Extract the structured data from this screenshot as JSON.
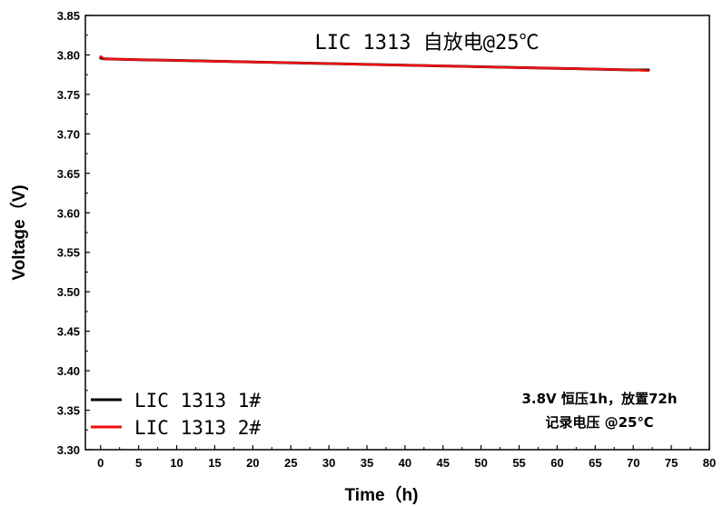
{
  "chart_data": {
    "type": "line",
    "title": "LIC 1313 自放电@25℃",
    "xlabel": "Time（h)",
    "ylabel": "Voltage（V)",
    "xlim": [
      -2,
      80
    ],
    "ylim": [
      3.3,
      3.85
    ],
    "x_ticks": [
      0,
      5,
      10,
      15,
      20,
      25,
      30,
      35,
      40,
      45,
      50,
      55,
      60,
      65,
      70,
      75,
      80
    ],
    "y_ticks": [
      3.3,
      3.35,
      3.4,
      3.45,
      3.5,
      3.55,
      3.6,
      3.65,
      3.7,
      3.75,
      3.8,
      3.85
    ],
    "legend_position": "bottom-left",
    "series": [
      {
        "name": "LIC 1313 1#",
        "color": "#000000",
        "x": [
          0,
          0.5,
          5,
          10,
          15,
          20,
          25,
          30,
          35,
          40,
          45,
          50,
          55,
          60,
          65,
          70,
          72
        ],
        "y": [
          3.796,
          3.795,
          3.794,
          3.793,
          3.792,
          3.791,
          3.79,
          3.789,
          3.788,
          3.787,
          3.786,
          3.785,
          3.784,
          3.783,
          3.782,
          3.781,
          3.781
        ]
      },
      {
        "name": "LIC 1313 2#",
        "color": "#ee1111",
        "x": [
          0,
          0.5,
          5,
          10,
          15,
          20,
          25,
          30,
          35,
          40,
          45,
          50,
          55,
          60,
          65,
          70,
          72
        ],
        "y": [
          3.798,
          3.795,
          3.794,
          3.793,
          3.792,
          3.791,
          3.79,
          3.789,
          3.788,
          3.787,
          3.786,
          3.785,
          3.784,
          3.783,
          3.782,
          3.781,
          3.78
        ]
      }
    ],
    "annotations": [
      "3.8V 恒压1h，放置72h",
      "记录电压 @25℃"
    ]
  }
}
